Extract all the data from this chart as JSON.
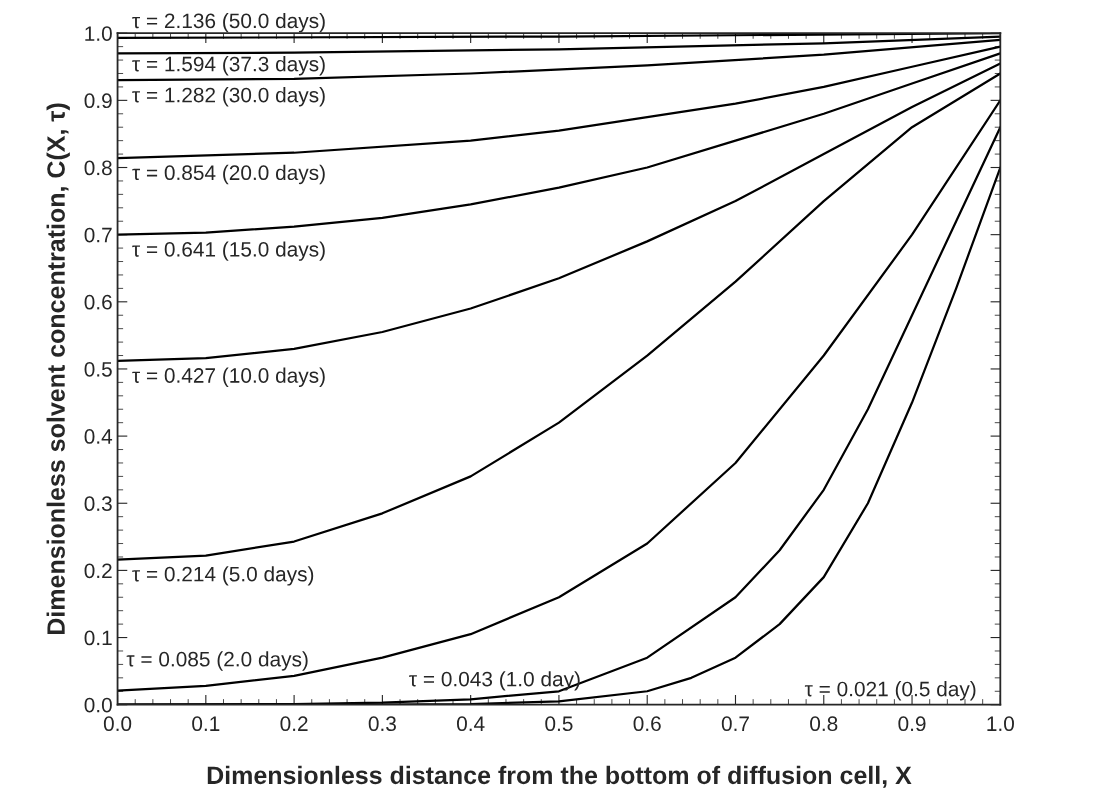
{
  "chart_data": {
    "type": "line",
    "xlabel": "Dimensionless distance from the bottom of diffusion cell, X",
    "ylabel": "Dimensionless solvent concentration, C(X, τ)",
    "xlim": [
      0.0,
      1.0
    ],
    "ylim": [
      0.0,
      1.0
    ],
    "xticks": [
      {
        "value": 0.0,
        "label": "0.0"
      },
      0.1,
      0.2,
      0.3,
      0.4,
      0.5,
      0.6,
      0.7,
      0.8,
      0.9,
      {
        "value": 1.0,
        "label": "1.0"
      }
    ],
    "yticks": [
      {
        "value": 0.0,
        "label": "0.0"
      },
      0.1,
      0.2,
      0.3,
      0.4,
      0.5,
      0.6,
      0.7,
      0.8,
      0.9,
      {
        "value": 1.0,
        "label": "1.0"
      }
    ],
    "grid": false,
    "legend": false,
    "marker": "none",
    "line_style": "solid",
    "series": [
      {
        "name": "τ = 2.136 (50.0 days)",
        "color": "#000000",
        "x": [
          0,
          0.5,
          1.0
        ],
        "values": [
          0.993,
          0.995,
          1.0
        ]
      },
      {
        "name": "τ = 1.594 (37.3 days)",
        "color": "#000000",
        "x": [
          0,
          0.2,
          0.5,
          0.8,
          1.0
        ],
        "values": [
          0.97,
          0.971,
          0.976,
          0.985,
          0.995
        ]
      },
      {
        "name": "τ = 1.282 (30.0 days)",
        "color": "#000000",
        "x": [
          0,
          0.2,
          0.4,
          0.6,
          0.8,
          1.0
        ],
        "values": [
          0.93,
          0.932,
          0.94,
          0.952,
          0.968,
          0.99
        ]
      },
      {
        "name": "τ = 0.854 (20.0 days)",
        "color": "#000000",
        "x": [
          0,
          0.2,
          0.4,
          0.5,
          0.6,
          0.7,
          0.8,
          0.9,
          1.0
        ],
        "values": [
          0.814,
          0.822,
          0.84,
          0.855,
          0.875,
          0.895,
          0.92,
          0.95,
          0.98
        ]
      },
      {
        "name": "τ = 0.641 (15.0 days)",
        "color": "#000000",
        "x": [
          0,
          0.1,
          0.2,
          0.3,
          0.4,
          0.5,
          0.6,
          0.7,
          0.8,
          0.9,
          1.0
        ],
        "values": [
          0.7,
          0.703,
          0.712,
          0.725,
          0.745,
          0.77,
          0.8,
          0.84,
          0.88,
          0.925,
          0.97
        ]
      },
      {
        "name": "τ = 0.427 (10.0 days)",
        "color": "#000000",
        "x": [
          0,
          0.1,
          0.2,
          0.3,
          0.4,
          0.5,
          0.6,
          0.7,
          0.8,
          0.9,
          1.0
        ],
        "values": [
          0.512,
          0.516,
          0.53,
          0.555,
          0.59,
          0.635,
          0.69,
          0.75,
          0.82,
          0.89,
          0.955
        ]
      },
      {
        "name": "τ = 0.214 (5.0 days)",
        "color": "#000000",
        "x": [
          0,
          0.1,
          0.2,
          0.3,
          0.4,
          0.5,
          0.6,
          0.7,
          0.8,
          0.9,
          1.0
        ],
        "values": [
          0.216,
          0.222,
          0.243,
          0.285,
          0.34,
          0.42,
          0.52,
          0.63,
          0.75,
          0.86,
          0.94
        ]
      },
      {
        "name": "τ = 0.085 (2.0 days)",
        "color": "#000000",
        "x": [
          0,
          0.1,
          0.2,
          0.3,
          0.4,
          0.5,
          0.6,
          0.7,
          0.8,
          0.9,
          1.0
        ],
        "values": [
          0.021,
          0.028,
          0.043,
          0.07,
          0.105,
          0.16,
          0.24,
          0.36,
          0.52,
          0.7,
          0.9
        ]
      },
      {
        "name": "τ = 0.043 (1.0 day)",
        "color": "#000000",
        "x": [
          0,
          0.2,
          0.3,
          0.4,
          0.5,
          0.6,
          0.7,
          0.75,
          0.8,
          0.85,
          0.9,
          0.95,
          1.0
        ],
        "values": [
          0.0,
          0.001,
          0.003,
          0.008,
          0.02,
          0.07,
          0.16,
          0.23,
          0.32,
          0.44,
          0.58,
          0.72,
          0.86
        ]
      },
      {
        "name": "τ = 0.021 (0.5 day)",
        "color": "#000000",
        "x": [
          0,
          0.3,
          0.4,
          0.5,
          0.6,
          0.65,
          0.7,
          0.75,
          0.8,
          0.85,
          0.9,
          0.95,
          1.0
        ],
        "values": [
          0.0,
          0.0,
          0.001,
          0.005,
          0.02,
          0.04,
          0.07,
          0.12,
          0.19,
          0.3,
          0.45,
          0.62,
          0.8
        ]
      }
    ]
  }
}
